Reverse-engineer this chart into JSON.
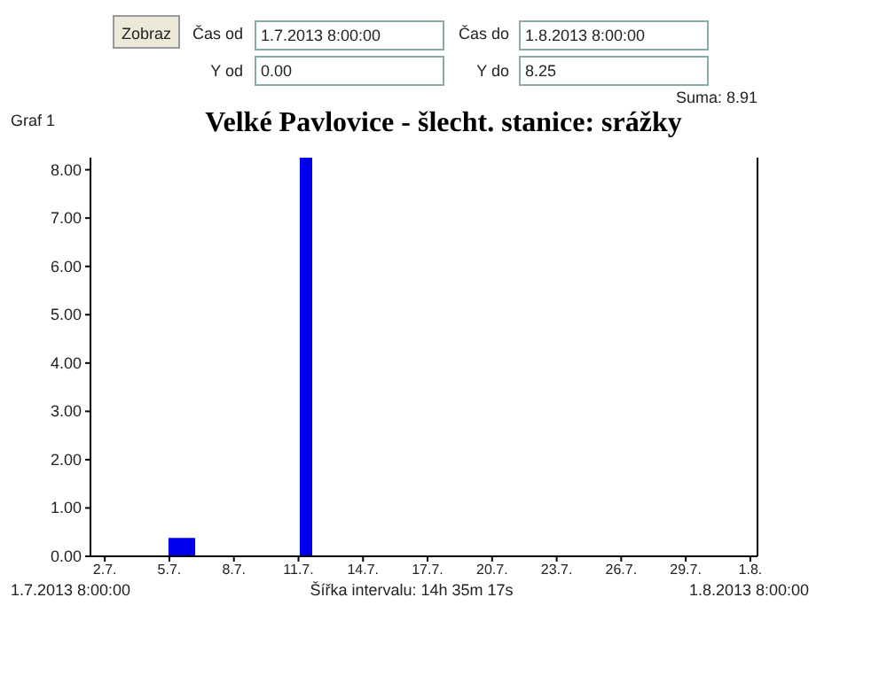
{
  "chart_data": {
    "type": "histogram",
    "title": "Velké Pavlovice - šlecht. stanice: srážky",
    "bins": [
      "2013-07-04T23:00",
      "2013-07-06T04:50",
      "2013-07-11T01:25",
      "2013-07-11T15:20"
    ],
    "values": [
      0.38,
      0,
      8.25
    ],
    "color": "#0000ee",
    "xlim": [
      "2013-07-01T08:00",
      "2013-08-01T08:00"
    ],
    "xticks": [
      {
        "value": "2013-07-02",
        "label": "2.7."
      },
      {
        "value": "2013-07-05",
        "label": "5.7."
      },
      {
        "value": "2013-07-08",
        "label": "8.7."
      },
      {
        "value": "2013-07-11",
        "label": "11.7."
      },
      {
        "value": "2013-07-14",
        "label": "14.7."
      },
      {
        "value": "2013-07-17",
        "label": "17.7."
      },
      {
        "value": "2013-07-20",
        "label": "20.7."
      },
      {
        "value": "2013-07-23",
        "label": "23.7."
      },
      {
        "value": "2013-07-26",
        "label": "26.7."
      },
      {
        "value": "2013-07-29",
        "label": "29.7."
      },
      {
        "value": "2013-08-01",
        "label": "1.8."
      }
    ],
    "ylim": [
      0,
      8.25
    ],
    "yticks": [
      {
        "value": 0,
        "label": "0.00"
      },
      {
        "value": 1,
        "label": "1.00"
      },
      {
        "value": 2,
        "label": "2.00"
      },
      {
        "value": 3,
        "label": "3.00"
      },
      {
        "value": 4,
        "label": "4.00"
      },
      {
        "value": 5,
        "label": "5.00"
      },
      {
        "value": 6,
        "label": "6.00"
      },
      {
        "value": 7,
        "label": "7.00"
      },
      {
        "value": 8,
        "label": "8.00"
      }
    ],
    "grid": false,
    "annotations": [
      "Zobraz",
      "Čas od",
      "1.7.2013 8:00:00",
      "Čas do",
      "1.8.2013 8:00:00",
      "Y od",
      "0.00",
      "Y do",
      "8.25",
      "Suma: 8.91",
      "Graf 1",
      "1.7.2013 8:00:00",
      "Šířka intervalu: 14h 35m 17s",
      "1.8.2013 8:00:00"
    ]
  }
}
